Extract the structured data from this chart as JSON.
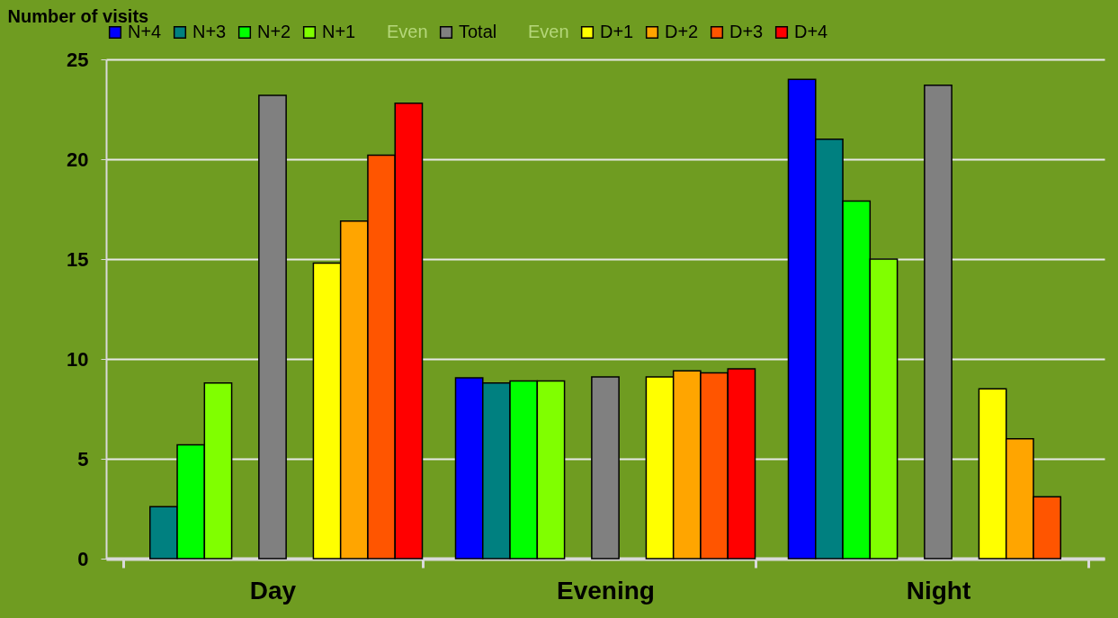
{
  "chart_data": {
    "type": "bar",
    "ylabel": "Number of visits",
    "categories": [
      "Day",
      "Evening",
      "Night"
    ],
    "series": [
      {
        "name": "N+4",
        "color": "#0000ff",
        "values": [
          null,
          9.05,
          24.0
        ]
      },
      {
        "name": "N+3",
        "color": "#008080",
        "values": [
          2.6,
          8.8,
          21.0
        ]
      },
      {
        "name": "N+2",
        "color": "#00ff00",
        "values": [
          5.7,
          8.9,
          17.9
        ]
      },
      {
        "name": "N+1",
        "color": "#80ff00",
        "values": [
          8.8,
          8.9,
          15.0
        ]
      },
      {
        "name": "Even",
        "color": "#b5d77a",
        "values": [
          null,
          null,
          null
        ]
      },
      {
        "name": "Total",
        "color": "#808080",
        "values": [
          23.2,
          9.1,
          23.7
        ]
      },
      {
        "name": "Even",
        "color": "#b5d77a",
        "values": [
          null,
          null,
          null
        ]
      },
      {
        "name": "D+1",
        "color": "#ffff00",
        "values": [
          14.8,
          9.1,
          8.5
        ]
      },
      {
        "name": "D+2",
        "color": "#ffa500",
        "values": [
          16.9,
          9.4,
          6.0
        ]
      },
      {
        "name": "D+3",
        "color": "#ff5500",
        "values": [
          20.2,
          9.3,
          3.1
        ]
      },
      {
        "name": "D+4",
        "color": "#ff0000",
        "values": [
          22.8,
          9.5,
          null
        ]
      }
    ],
    "ylim": [
      0,
      25
    ],
    "yticks": [
      0,
      5,
      10,
      15,
      20,
      25
    ],
    "grid": "y",
    "legend": "top"
  }
}
